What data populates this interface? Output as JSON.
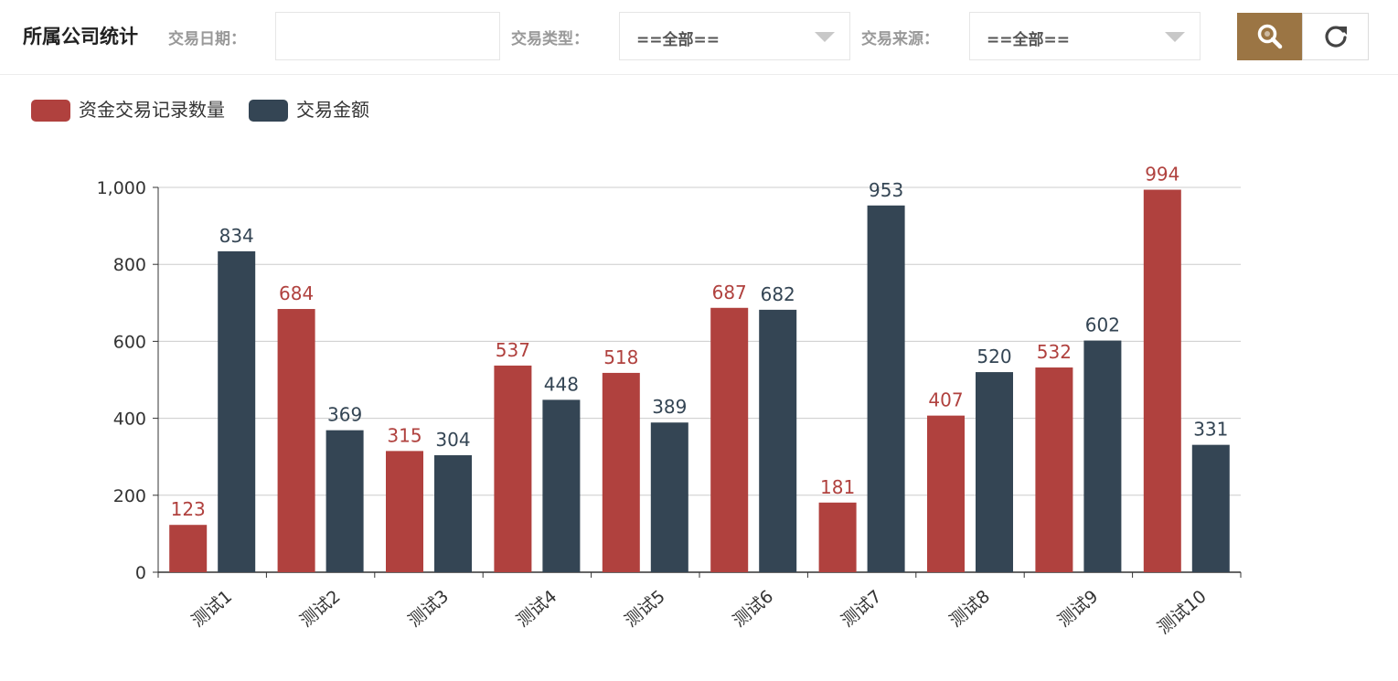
{
  "toolbar": {
    "title": "所属公司统计",
    "date_label": "交易日期：",
    "date_value": "",
    "type_label": "交易类型：",
    "type_value": "==全部==",
    "source_label": "交易来源：",
    "source_value": "==全部==",
    "search_icon": "search-icon",
    "refresh_icon": "refresh-icon",
    "accent_color": "#9b7544"
  },
  "chart_data": {
    "type": "bar",
    "categories": [
      "测试1",
      "测试2",
      "测试3",
      "测试4",
      "测试5",
      "测试6",
      "测试7",
      "测试8",
      "测试9",
      "测试10"
    ],
    "series": [
      {
        "name": "资金交易记录数量",
        "color": "#b0413e",
        "values": [
          123,
          684,
          315,
          537,
          518,
          687,
          181,
          407,
          532,
          994
        ]
      },
      {
        "name": "交易金额",
        "color": "#344554",
        "values": [
          834,
          369,
          304,
          448,
          389,
          682,
          953,
          520,
          602,
          331
        ]
      }
    ],
    "y_ticks": [
      "0",
      "200",
      "400",
      "600",
      "800",
      "1,000"
    ],
    "ylim": [
      0,
      1000
    ],
    "grid": true,
    "legend_position": "top-left",
    "show_data_labels": true
  }
}
